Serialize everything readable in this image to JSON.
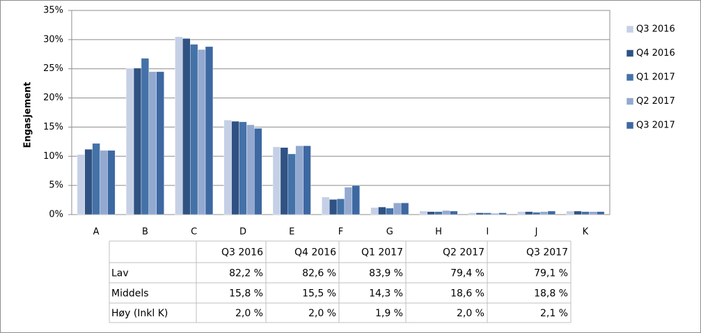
{
  "chart_data": {
    "type": "bar",
    "y_label": "Engasjement",
    "categories": [
      "A",
      "B",
      "C",
      "D",
      "E",
      "F",
      "G",
      "H",
      "I",
      "J",
      "K"
    ],
    "series": [
      {
        "name": "Q3 2016",
        "color": "#c5d0e6",
        "values": [
          10.3,
          25.0,
          30.5,
          16.2,
          11.6,
          3.0,
          1.2,
          0.6,
          0.3,
          0.5,
          0.6
        ]
      },
      {
        "name": "Q4 2016",
        "color": "#2f5283",
        "values": [
          11.2,
          25.1,
          30.2,
          16.0,
          11.5,
          2.6,
          1.3,
          0.5,
          0.3,
          0.5,
          0.6
        ]
      },
      {
        "name": "Q1 2017",
        "color": "#4472a8",
        "values": [
          12.2,
          26.8,
          29.2,
          15.9,
          10.4,
          2.7,
          1.1,
          0.5,
          0.3,
          0.4,
          0.5
        ]
      },
      {
        "name": "Q2 2017",
        "color": "#93a9d0",
        "values": [
          11.0,
          24.5,
          28.3,
          15.4,
          11.8,
          4.7,
          2.0,
          0.7,
          0.2,
          0.5,
          0.5
        ]
      },
      {
        "name": "Q3 2017",
        "color": "#3d68a2",
        "values": [
          11.0,
          24.5,
          28.8,
          14.8,
          11.8,
          5.0,
          2.0,
          0.6,
          0.3,
          0.6,
          0.5
        ]
      }
    ],
    "ylim": [
      0,
      35
    ],
    "yticks": [
      {
        "value": 0,
        "label": "0%"
      },
      {
        "value": 5,
        "label": "5%"
      },
      {
        "value": 10,
        "label": "10%"
      },
      {
        "value": 15,
        "label": "15%"
      },
      {
        "value": 20,
        "label": "20%"
      },
      {
        "value": 25,
        "label": "25%"
      },
      {
        "value": 30,
        "label": "30%"
      },
      {
        "value": 35,
        "label": "35%"
      }
    ],
    "grid": true,
    "legend": "right"
  },
  "table": {
    "header": [
      "Q3 2016",
      "Q4 2016",
      "Q1 2017",
      "Q2 2017",
      "Q3 2017"
    ],
    "rows": [
      [
        "Lav",
        "82,2 %",
        "82,6 %",
        "83,9 %",
        "79,4 %",
        "79,1 %"
      ],
      [
        "Middels",
        "15,8 %",
        "15,5 %",
        "14,3 %",
        "18,6 %",
        "18,8 %"
      ],
      [
        "Høy (Inkl K)",
        "2,0 %",
        "2,0 %",
        "1,9 %",
        "2,0 %",
        "2,1 %"
      ]
    ]
  }
}
